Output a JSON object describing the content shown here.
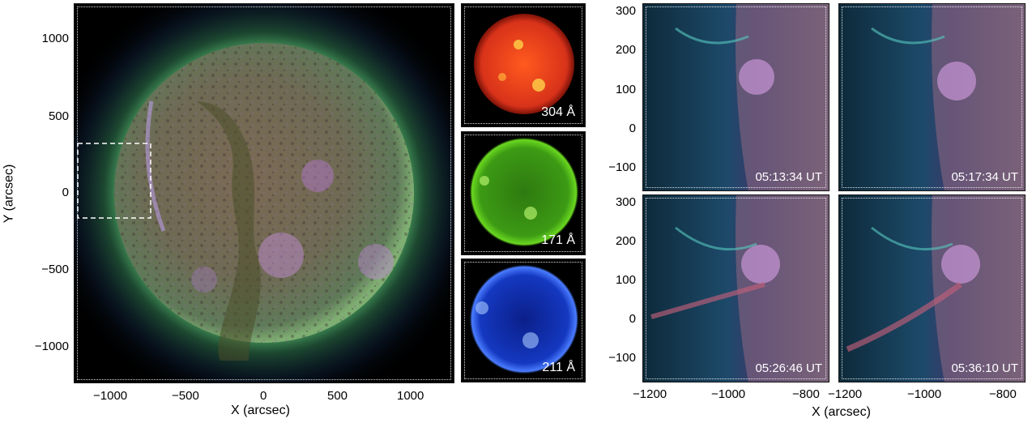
{
  "main_panel": {
    "xlabel": "X (arcsec)",
    "ylabel": "Y (arcsec)",
    "x_ticks": [
      "−1000",
      "−500",
      "0",
      "500",
      "1000"
    ],
    "y_ticks": [
      "1000",
      "500",
      "0",
      "−500",
      "−1000"
    ]
  },
  "wavelength_panels": [
    {
      "label": "304 Å",
      "color": "#e0401a"
    },
    {
      "label": "171 Å",
      "color": "#5ec21a"
    },
    {
      "label": "211 Å",
      "color": "#1b48e6"
    }
  ],
  "zoom_panels": {
    "xlabel": "X (arcsec)",
    "x_ticks_left": [
      "−1200",
      "−1000",
      "−800"
    ],
    "x_ticks_right": [
      "−1200",
      "−1000",
      "−800"
    ],
    "y_ticks": [
      "300",
      "200",
      "100",
      "0",
      "−100"
    ],
    "times": [
      "05:13:34 UT",
      "05:17:34 UT",
      "05:26:46 UT",
      "05:36:10 UT"
    ]
  }
}
